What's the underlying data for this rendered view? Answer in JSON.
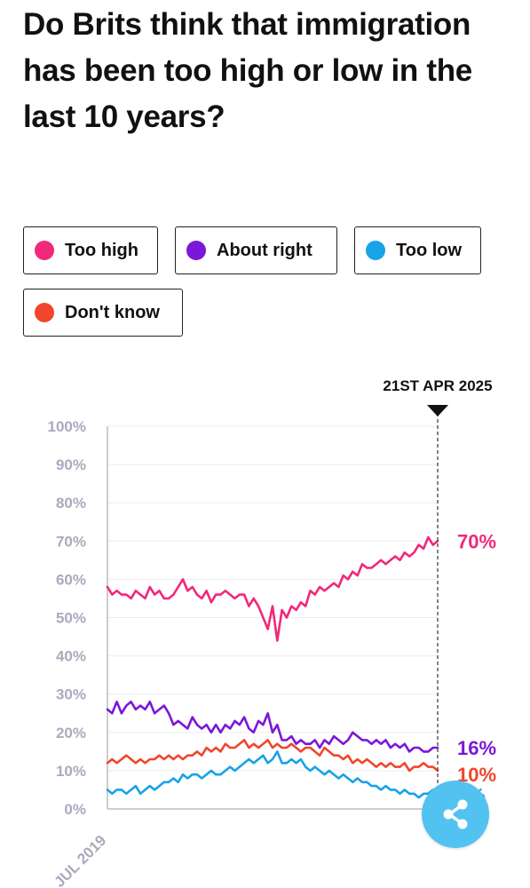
{
  "title": "Do Brits think that immigration has been too high or low in the last 10 years?",
  "legend": [
    {
      "label": "Too high",
      "color": "#f1287c"
    },
    {
      "label": "About right",
      "color": "#7b17d8"
    },
    {
      "label": "Too low",
      "color": "#17a3e6"
    },
    {
      "label": "Don't know",
      "color": "#f0462b"
    }
  ],
  "share": {
    "icon": "share-icon"
  },
  "chart_data": {
    "type": "line",
    "x_start_label": "JUL 2019",
    "marker_label": "21ST APR 2025",
    "y_ticks": [
      "100%",
      "90%",
      "80%",
      "70%",
      "60%",
      "50%",
      "40%",
      "30%",
      "20%",
      "10%",
      "0%"
    ],
    "ylim": [
      0,
      100
    ],
    "grid": true,
    "end_labels": [
      "70%",
      "16%",
      "10%",
      "5%"
    ],
    "series": [
      {
        "name": "Too high",
        "color": "#f1287c",
        "values": [
          58,
          56,
          57,
          56,
          56,
          55,
          57,
          56,
          55,
          58,
          56,
          57,
          55,
          55,
          56,
          58,
          60,
          57,
          58,
          56,
          55,
          57,
          54,
          56,
          56,
          57,
          56,
          55,
          56,
          56,
          53,
          55,
          53,
          50,
          47,
          53,
          44,
          52,
          50,
          53,
          52,
          54,
          53,
          57,
          56,
          58,
          57,
          58,
          59,
          58,
          61,
          60,
          62,
          61,
          64,
          63,
          63,
          64,
          65,
          64,
          65,
          66,
          65,
          67,
          66,
          67,
          69,
          68,
          71,
          69,
          70
        ]
      },
      {
        "name": "About right",
        "color": "#7b17d8",
        "values": [
          26,
          25,
          28,
          25,
          27,
          28,
          26,
          27,
          26,
          28,
          25,
          26,
          27,
          25,
          22,
          23,
          22,
          21,
          24,
          22,
          21,
          22,
          20,
          22,
          20,
          22,
          21,
          23,
          22,
          24,
          21,
          20,
          23,
          22,
          25,
          20,
          22,
          18,
          18,
          19,
          17,
          18,
          17,
          17,
          18,
          16,
          18,
          17,
          19,
          18,
          17,
          18,
          20,
          19,
          18,
          18,
          17,
          18,
          17,
          18,
          16,
          17,
          16,
          17,
          15,
          16,
          16,
          15,
          15,
          16,
          16
        ]
      },
      {
        "name": "Don't know",
        "color": "#f0462b",
        "values": [
          12,
          13,
          12,
          13,
          14,
          13,
          12,
          13,
          12,
          13,
          13,
          14,
          13,
          14,
          13,
          14,
          13,
          14,
          14,
          15,
          14,
          16,
          15,
          16,
          15,
          17,
          16,
          16,
          17,
          18,
          16,
          17,
          16,
          17,
          18,
          16,
          17,
          16,
          16,
          17,
          16,
          15,
          16,
          16,
          15,
          14,
          16,
          15,
          14,
          14,
          13,
          14,
          12,
          13,
          12,
          13,
          12,
          11,
          12,
          11,
          12,
          11,
          11,
          12,
          10,
          11,
          11,
          12,
          11,
          11,
          10
        ]
      },
      {
        "name": "Too low",
        "color": "#17a3e6",
        "values": [
          5,
          4,
          5,
          5,
          4,
          5,
          6,
          4,
          5,
          6,
          5,
          6,
          7,
          7,
          8,
          7,
          9,
          8,
          9,
          9,
          8,
          9,
          10,
          9,
          9,
          10,
          11,
          10,
          11,
          12,
          13,
          12,
          13,
          14,
          12,
          13,
          15,
          12,
          12,
          13,
          12,
          13,
          11,
          10,
          11,
          10,
          9,
          10,
          9,
          8,
          9,
          8,
          7,
          8,
          7,
          7,
          6,
          6,
          5,
          6,
          5,
          5,
          4,
          5,
          4,
          4,
          3,
          4,
          4,
          5,
          5
        ]
      }
    ]
  }
}
